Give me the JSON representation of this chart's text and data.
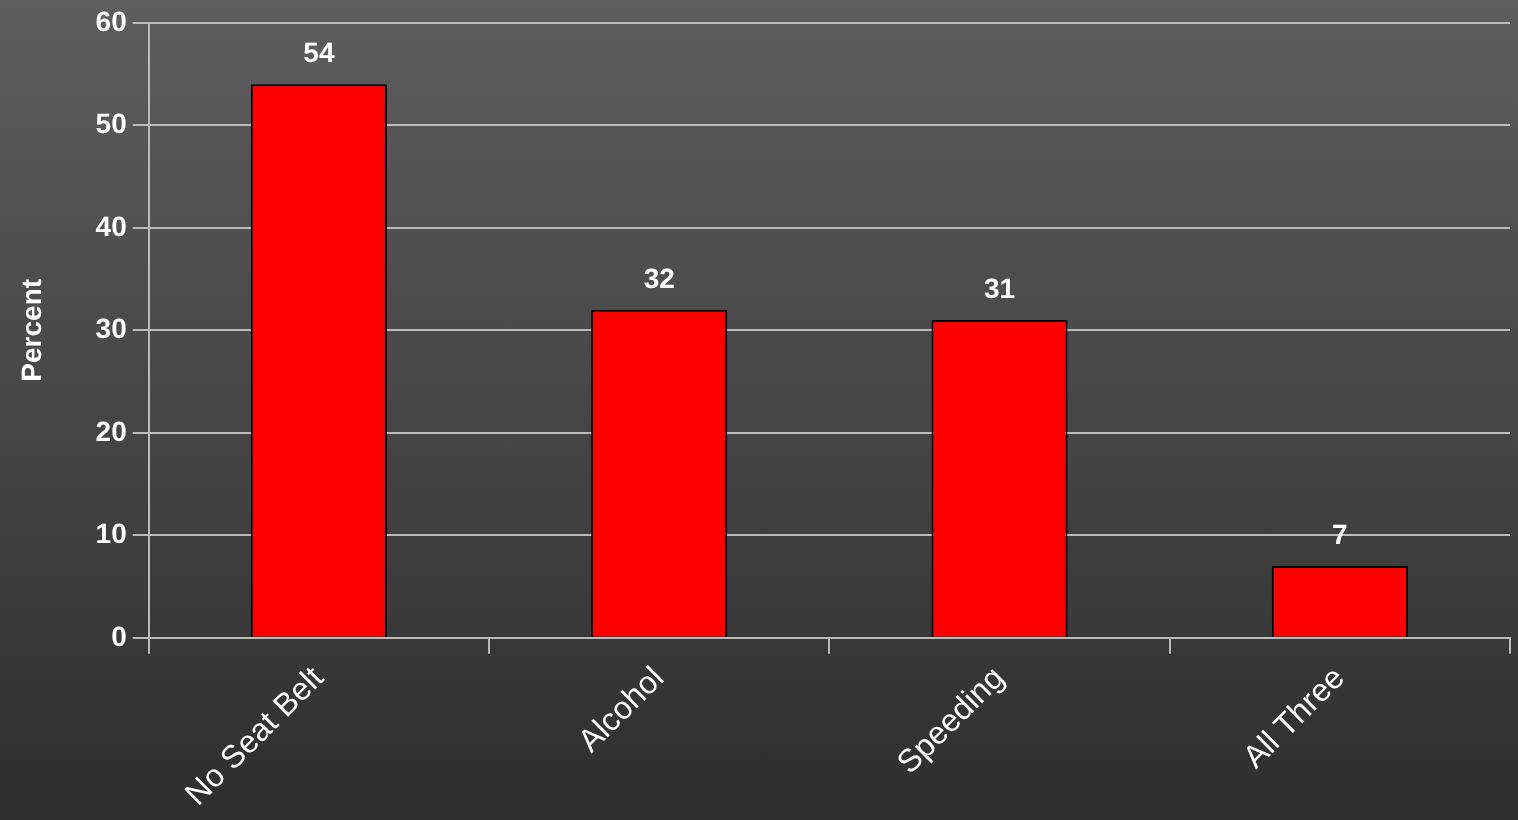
{
  "chart_data": {
    "type": "bar",
    "ylabel": "Percent",
    "categories": [
      "No Seat Belt",
      "Alcohol",
      "Speeding",
      "All Three"
    ],
    "values": [
      54,
      32,
      31,
      7
    ],
    "color": "#ff0000",
    "ylim": [
      0,
      60
    ],
    "yticks": [
      0,
      10,
      20,
      30,
      40,
      50,
      60
    ],
    "grid": "y",
    "legend": false,
    "data_labels": true
  }
}
